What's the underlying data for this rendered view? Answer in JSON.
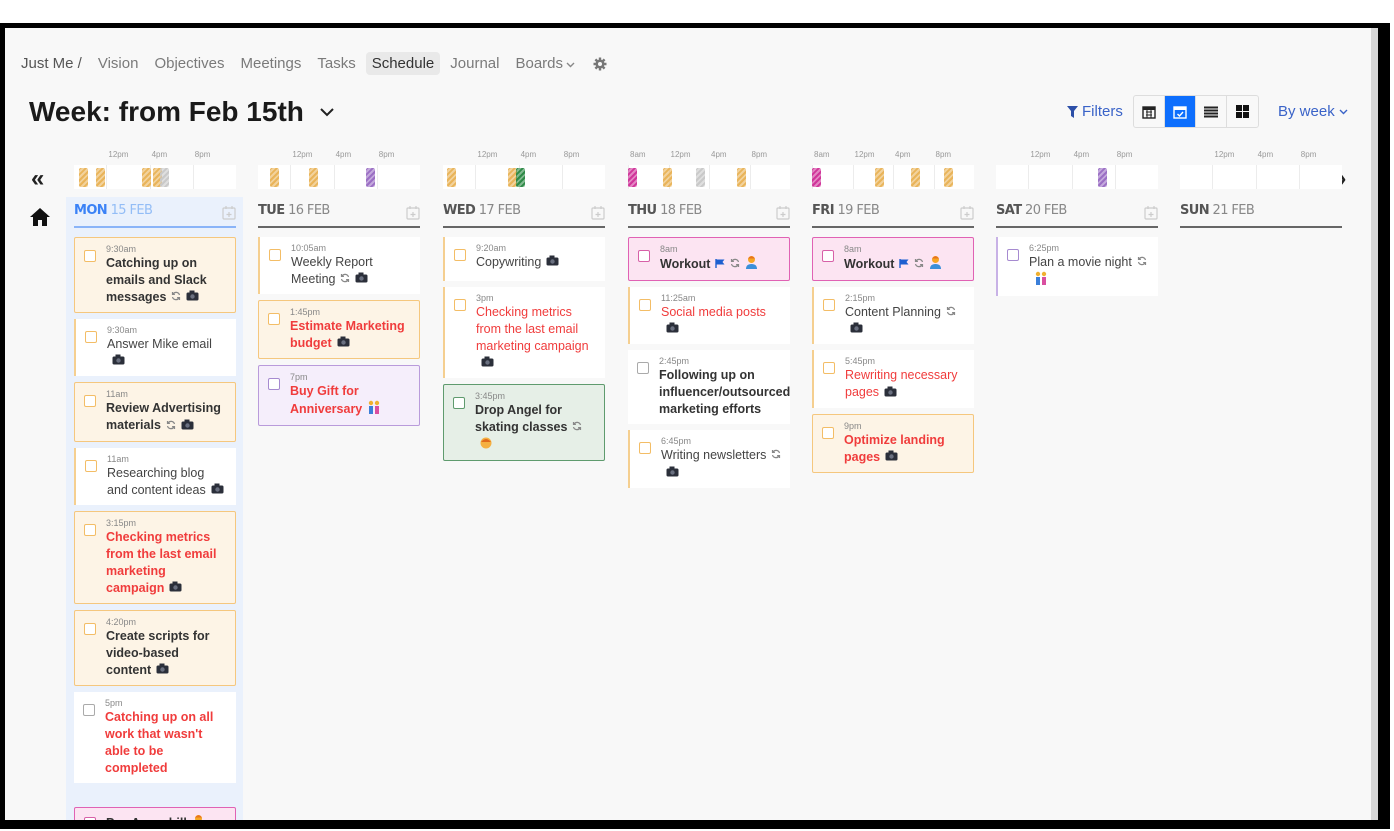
{
  "nav": {
    "breadcrumb": "Just Me /",
    "items": [
      "Vision",
      "Objectives",
      "Meetings",
      "Tasks",
      "Schedule",
      "Journal",
      "Boards"
    ],
    "active": "Schedule",
    "settings_icon": "gear-icon"
  },
  "header": {
    "title": "Week: from Feb 15th",
    "filters_label": "Filters",
    "view_buttons": [
      {
        "icon": "calendar-month-icon",
        "active": false
      },
      {
        "icon": "calendar-check-icon",
        "active": true
      },
      {
        "icon": "list-icon",
        "active": false
      },
      {
        "icon": "grid-icon",
        "active": false
      }
    ],
    "period_label": "By week"
  },
  "colors": {
    "accent": "#0d6efd",
    "yellow": "#e9b45a",
    "purple": "#9b6fc4",
    "green": "#2e8a47",
    "pink": "#d0359a",
    "gray": "#c9c9c9",
    "red": "#f03c3c"
  },
  "days": [
    {
      "name": "MON",
      "date": "15 FEB",
      "today": true,
      "range": [
        9,
        24
      ],
      "ticks": [
        "12pm",
        "4pm",
        "8pm"
      ],
      "blocks": [
        {
          "h": 9.5,
          "c": "yellow"
        },
        {
          "h": 11,
          "c": "yellow"
        },
        {
          "h": 15.25,
          "c": "yellow"
        },
        {
          "h": 16.33,
          "c": "yellow"
        },
        {
          "h": 17,
          "c": "gray"
        }
      ],
      "tasks": [
        {
          "time": "9:30am",
          "title": "Catching up on emails and Slack messages",
          "style": "filled",
          "bold": true,
          "icons": [
            "repeat",
            "camera"
          ]
        },
        {
          "time": "9:30am",
          "title": "Answer Mike email",
          "style": "left",
          "icons": [
            "camera"
          ]
        },
        {
          "time": "11am",
          "title": "Review Advertising materials",
          "style": "filled",
          "bold": true,
          "icons": [
            "repeat",
            "camera"
          ]
        },
        {
          "time": "11am",
          "title": "Researching blog and content ideas",
          "style": "left",
          "icons": [
            "camera"
          ]
        },
        {
          "time": "3:15pm",
          "title": "Checking metrics from the last email marketing campaign",
          "style": "filled",
          "bold": true,
          "red": true,
          "icons": [
            "camera"
          ]
        },
        {
          "time": "4:20pm",
          "title": "Create scripts for video-based content",
          "style": "filled",
          "bold": true,
          "icons": [
            "camera"
          ]
        },
        {
          "time": "5pm",
          "title": "Catching up on all work that wasn't able to be completed",
          "style": "plain",
          "bold": true,
          "red": true,
          "icons": []
        }
      ],
      "untimed_tasks": [
        {
          "title": "Pay Amex bill",
          "style": "pink",
          "bold": true,
          "icons": [
            "person"
          ]
        }
      ]
    },
    {
      "name": "TUE",
      "date": "16 FEB",
      "range": [
        9,
        24
      ],
      "ticks": [
        "12pm",
        "4pm",
        "8pm"
      ],
      "blocks": [
        {
          "h": 10.08,
          "c": "yellow"
        },
        {
          "h": 13.75,
          "c": "yellow"
        },
        {
          "h": 19,
          "c": "purple"
        }
      ],
      "tasks": [
        {
          "time": "10:05am",
          "title": "Weekly Report Meeting",
          "style": "left",
          "icons": [
            "repeat",
            "camera"
          ]
        },
        {
          "time": "1:45pm",
          "title": "Estimate Marketing budget",
          "style": "filled",
          "bold": true,
          "red": true,
          "icons": [
            "camera"
          ]
        },
        {
          "time": "7pm",
          "title": "Buy Gift for Anniversary",
          "style": "purple",
          "bold": true,
          "red": true,
          "icons": [
            "couple"
          ]
        }
      ]
    },
    {
      "name": "WED",
      "date": "17 FEB",
      "range": [
        9,
        24
      ],
      "ticks": [
        "12pm",
        "4pm",
        "8pm"
      ],
      "blocks": [
        {
          "h": 9.33,
          "c": "yellow"
        },
        {
          "h": 15,
          "c": "yellow"
        },
        {
          "h": 15.75,
          "c": "green"
        }
      ],
      "tasks": [
        {
          "time": "9:20am",
          "title": "Copywriting",
          "style": "left",
          "icons": [
            "camera"
          ]
        },
        {
          "time": "3pm",
          "title": "Checking metrics from the last email marketing campaign",
          "style": "left",
          "red": true,
          "icons": [
            "camera"
          ]
        },
        {
          "time": "3:45pm",
          "title": "Drop Angel for skating classes",
          "style": "green",
          "bold": true,
          "icons": [
            "repeat",
            "child"
          ]
        }
      ]
    },
    {
      "name": "THU",
      "date": "18 FEB",
      "range": [
        8,
        24
      ],
      "ticks": [
        "8am",
        "12pm",
        "4pm",
        "8pm"
      ],
      "blocks": [
        {
          "h": 8,
          "c": "pink"
        },
        {
          "h": 11.42,
          "c": "yellow"
        },
        {
          "h": 14.75,
          "c": "gray"
        },
        {
          "h": 18.75,
          "c": "yellow"
        }
      ],
      "tasks": [
        {
          "time": "8am",
          "title": "Workout",
          "style": "pink",
          "bold": true,
          "icons": [
            "flag",
            "repeat",
            "person"
          ]
        },
        {
          "time": "11:25am",
          "title": "Social media posts",
          "style": "left",
          "red": true,
          "icons": [
            "camera"
          ]
        },
        {
          "time": "2:45pm",
          "title": "Following up on influencer/outsourced marketing efforts",
          "style": "plain",
          "bold": true,
          "icons": []
        },
        {
          "time": "6:45pm",
          "title": "Writing newsletters",
          "style": "left",
          "icons": [
            "repeat",
            "camera"
          ]
        }
      ]
    },
    {
      "name": "FRI",
      "date": "19 FEB",
      "range": [
        8,
        24
      ],
      "ticks": [
        "8am",
        "12pm",
        "4pm",
        "8pm"
      ],
      "blocks": [
        {
          "h": 8,
          "c": "pink"
        },
        {
          "h": 14.25,
          "c": "yellow"
        },
        {
          "h": 17.75,
          "c": "yellow"
        },
        {
          "h": 21,
          "c": "yellow"
        }
      ],
      "tasks": [
        {
          "time": "8am",
          "title": "Workout",
          "style": "pink",
          "bold": true,
          "icons": [
            "flag",
            "repeat",
            "person"
          ]
        },
        {
          "time": "2:15pm",
          "title": "Content Planning",
          "style": "left",
          "icons": [
            "repeat",
            "camera"
          ]
        },
        {
          "time": "5:45pm",
          "title": "Rewriting necessary pages",
          "style": "left",
          "red": true,
          "icons": [
            "camera"
          ]
        },
        {
          "time": "9pm",
          "title": "Optimize landing pages",
          "style": "filled",
          "bold": true,
          "red": true,
          "icons": [
            "camera"
          ]
        }
      ]
    },
    {
      "name": "SAT",
      "date": "20 FEB",
      "range": [
        9,
        24
      ],
      "ticks": [
        "12pm",
        "4pm",
        "8pm"
      ],
      "blocks": [
        {
          "h": 18.42,
          "c": "purple"
        }
      ],
      "tasks": [
        {
          "time": "6:25pm",
          "title": "Plan a movie night",
          "style": "left-purple",
          "icons": [
            "repeat",
            "couple"
          ]
        }
      ]
    },
    {
      "name": "SUN",
      "date": "21 FEB",
      "range": [
        9,
        24
      ],
      "ticks": [
        "12pm",
        "4pm",
        "8pm"
      ],
      "blocks": [],
      "tasks": []
    }
  ]
}
